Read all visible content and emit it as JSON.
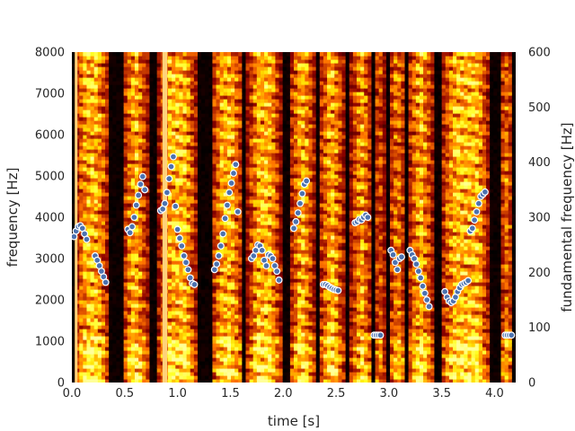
{
  "chart_data": {
    "type": "scatter",
    "background": "spectrogram",
    "colormap": "afmhot",
    "xlabel": "time [s]",
    "ylabel": "frequency [Hz]",
    "y2label": "fundamental frequency [Hz]",
    "xlim": [
      0.0,
      4.2
    ],
    "ylim": [
      0,
      8000
    ],
    "y2lim": [
      0,
      600
    ],
    "xticks": [
      "0.0",
      "0.5",
      "1.0",
      "1.5",
      "2.0",
      "2.5",
      "3.0",
      "3.5",
      "4.0"
    ],
    "yticks": [
      "0",
      "1000",
      "2000",
      "3000",
      "4000",
      "5000",
      "6000",
      "7000",
      "8000"
    ],
    "y2ticks": [
      "0",
      "100",
      "200",
      "300",
      "400",
      "500",
      "600"
    ],
    "grid": false,
    "marker_color": "#4c72b0",
    "marker_edge_color": "#ffffff",
    "series": [
      {
        "axis": "y2",
        "x": [
          0.02,
          0.04,
          0.06,
          0.08,
          0.1,
          0.12,
          0.14,
          0.22,
          0.24,
          0.26,
          0.28,
          0.3,
          0.32,
          0.53,
          0.55,
          0.57,
          0.59,
          0.61,
          0.63,
          0.65,
          0.67,
          0.69,
          0.84,
          0.86,
          0.88,
          0.9,
          0.92,
          0.94,
          0.96,
          0.98,
          1.0,
          1.02,
          1.04,
          1.06,
          1.08,
          1.1,
          1.12,
          1.14,
          1.16,
          1.35,
          1.37,
          1.39,
          1.41,
          1.43,
          1.45,
          1.47,
          1.49,
          1.51,
          1.53,
          1.55,
          1.57,
          1.7,
          1.72,
          1.74,
          1.76,
          1.78,
          1.8,
          1.82,
          1.84,
          1.86,
          1.88,
          1.9,
          1.92,
          1.94,
          1.96,
          2.1,
          2.12,
          2.14,
          2.16,
          2.18,
          2.2,
          2.22,
          2.38,
          2.4,
          2.42,
          2.44,
          2.46,
          2.48,
          2.5,
          2.52,
          2.68,
          2.7,
          2.72,
          2.74,
          2.76,
          2.78,
          2.8,
          2.86,
          2.88,
          2.9,
          2.92,
          3.02,
          3.04,
          3.06,
          3.08,
          3.1,
          3.12,
          3.2,
          3.22,
          3.24,
          3.26,
          3.28,
          3.3,
          3.32,
          3.34,
          3.36,
          3.38,
          3.53,
          3.55,
          3.57,
          3.59,
          3.61,
          3.63,
          3.65,
          3.67,
          3.69,
          3.71,
          3.73,
          3.75,
          3.77,
          3.79,
          3.81,
          3.83,
          3.85,
          3.87,
          3.89,
          3.91,
          4.1,
          4.12,
          4.14,
          4.16
        ],
        "y": [
          265,
          275,
          283,
          285,
          280,
          270,
          260,
          230,
          222,
          212,
          202,
          192,
          182,
          278,
          272,
          283,
          300,
          322,
          340,
          360,
          374,
          350,
          312,
          315,
          325,
          345,
          370,
          392,
          410,
          320,
          278,
          262,
          248,
          230,
          218,
          205,
          190,
          180,
          178,
          205,
          215,
          230,
          248,
          270,
          298,
          322,
          345,
          362,
          380,
          396,
          310,
          225,
          230,
          240,
          250,
          248,
          240,
          222,
          212,
          232,
          230,
          225,
          212,
          202,
          186,
          280,
          292,
          308,
          325,
          343,
          360,
          366,
          178,
          178,
          176,
          173,
          171,
          169,
          168,
          167,
          290,
          292,
          296,
          295,
          300,
          304,
          300,
          86,
          86,
          86,
          86,
          240,
          232,
          218,
          205,
          225,
          228,
          240,
          232,
          225,
          215,
          202,
          190,
          175,
          162,
          150,
          138,
          165,
          155,
          148,
          145,
          148,
          155,
          165,
          172,
          178,
          180,
          182,
          185,
          275,
          280,
          295,
          310,
          325,
          338,
          342,
          346,
          86,
          86,
          86,
          86
        ]
      }
    ]
  }
}
